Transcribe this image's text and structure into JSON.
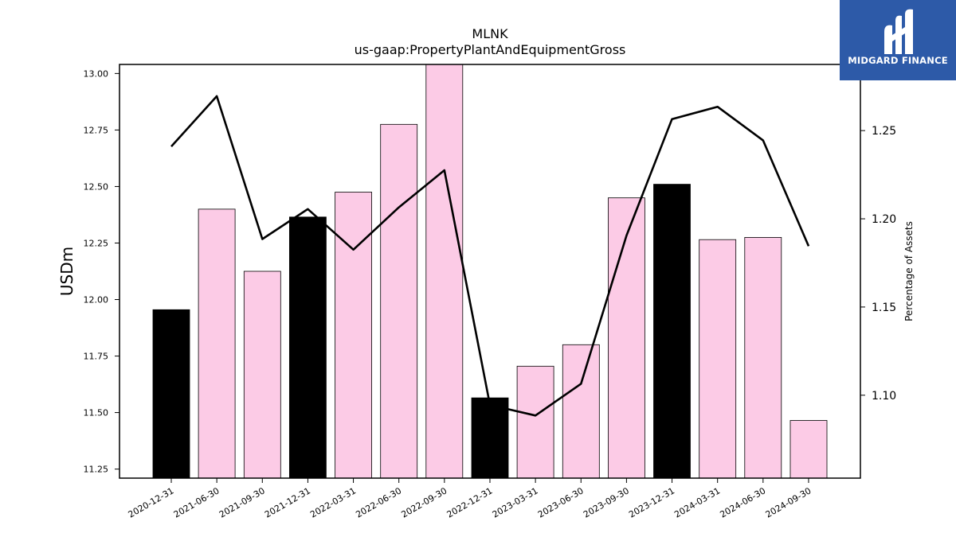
{
  "chart_data": {
    "type": "bar",
    "title": "MLNK",
    "subtitle": "us-gaap:PropertyPlantAndEquipmentGross",
    "ylabel": "USDm",
    "y2label": "Percentage of Assets",
    "categories": [
      "2020-12-31",
      "2021-06-30",
      "2021-09-30",
      "2021-12-31",
      "2022-03-31",
      "2022-06-30",
      "2022-09-30",
      "2022-12-31",
      "2023-03-31",
      "2023-06-30",
      "2023-09-30",
      "2023-12-31",
      "2024-03-31",
      "2024-06-30",
      "2024-09-30"
    ],
    "values": [
      11.955,
      12.4,
      12.125,
      12.365,
      12.475,
      12.775,
      13.04,
      11.565,
      11.705,
      11.8,
      12.45,
      12.51,
      12.265,
      12.275,
      11.465
    ],
    "bar_colors": [
      "#000000",
      "#fccbe6",
      "#fccbe6",
      "#000000",
      "#fccbe6",
      "#fccbe6",
      "#fccbe6",
      "#000000",
      "#fccbe6",
      "#fccbe6",
      "#fccbe6",
      "#000000",
      "#fccbe6",
      "#fccbe6",
      "#fccbe6"
    ],
    "line_values": [
      1.241,
      1.2695,
      1.1885,
      1.2055,
      1.1825,
      1.2065,
      1.2275,
      1.0945,
      1.0885,
      1.1065,
      1.1905,
      1.2565,
      1.2635,
      1.2445,
      1.1845
    ],
    "ylim": [
      11.21,
      13.04
    ],
    "y2lim": [
      1.053,
      1.2875
    ],
    "yticks": [
      11.25,
      11.5,
      11.75,
      12.0,
      12.25,
      12.5,
      12.75,
      13.0
    ],
    "y2ticks": [
      1.1,
      1.15,
      1.2,
      1.25
    ],
    "line_color": "#000000"
  },
  "logo": {
    "text": "MIDGARD FINANCE"
  }
}
